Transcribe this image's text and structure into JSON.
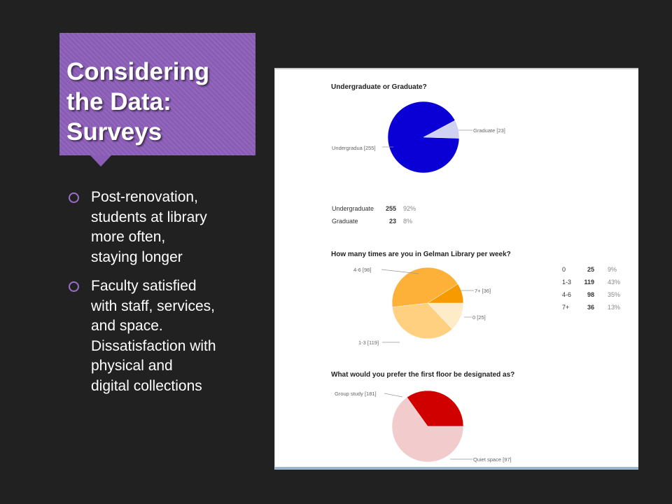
{
  "slide": {
    "title_lines": [
      "Considering",
      "the Data:",
      "Surveys"
    ],
    "bullets": [
      [
        "Post-renovation,",
        "students at library",
        "more often,",
        "staying longer"
      ],
      [
        "Faculty satisfied",
        "with staff, services,",
        "and space.",
        "Dissatisfaction with",
        "physical and",
        "digital collections"
      ]
    ]
  },
  "chart_data": [
    {
      "type": "pie",
      "title": "Undergraduate or Graduate?",
      "slices": [
        {
          "label": "Undergradua",
          "count": 255,
          "pct": "92%",
          "color": "#0a00d6"
        },
        {
          "label": "Graduate",
          "count": 23,
          "pct": "8%",
          "color": "#cfd0f2"
        }
      ],
      "pie_labels": [
        "Undergradua [255]",
        "Graduate [23]"
      ],
      "table": [
        {
          "label": "Undergraduate",
          "count": "255",
          "pct": "92%"
        },
        {
          "label": "Graduate",
          "count": "23",
          "pct": "8%"
        }
      ]
    },
    {
      "type": "pie",
      "title": "How many times are you in Gelman Library per week?",
      "slices": [
        {
          "label": "0",
          "count": 25,
          "pct": "9%",
          "color": "#f79a00"
        },
        {
          "label": "1-3",
          "count": 119,
          "pct": "43%",
          "color": "#feb139"
        },
        {
          "label": "4-6",
          "count": 98,
          "pct": "35%",
          "color": "#fed080"
        },
        {
          "label": "7+",
          "count": 36,
          "pct": "13%",
          "color": "#feebc7"
        }
      ],
      "pie_labels": [
        "4-6 [98]",
        "7+ [36]",
        "0 [25]",
        "1-3 [119]"
      ],
      "table": [
        {
          "label": "0",
          "count": "25",
          "pct": "9%"
        },
        {
          "label": "1-3",
          "count": "119",
          "pct": "43%"
        },
        {
          "label": "4-6",
          "count": "98",
          "pct": "35%"
        },
        {
          "label": "7+",
          "count": "36",
          "pct": "13%"
        }
      ]
    },
    {
      "type": "pie",
      "title": "What would you prefer the first floor be designated as?",
      "slices": [
        {
          "label": "Quiet space",
          "count": 97,
          "color": "#d10000"
        },
        {
          "label": "Group study",
          "count": 181,
          "color": "#f2cccc"
        }
      ],
      "pie_labels": [
        "Group study [181]",
        "Quiet space [97]"
      ]
    }
  ]
}
